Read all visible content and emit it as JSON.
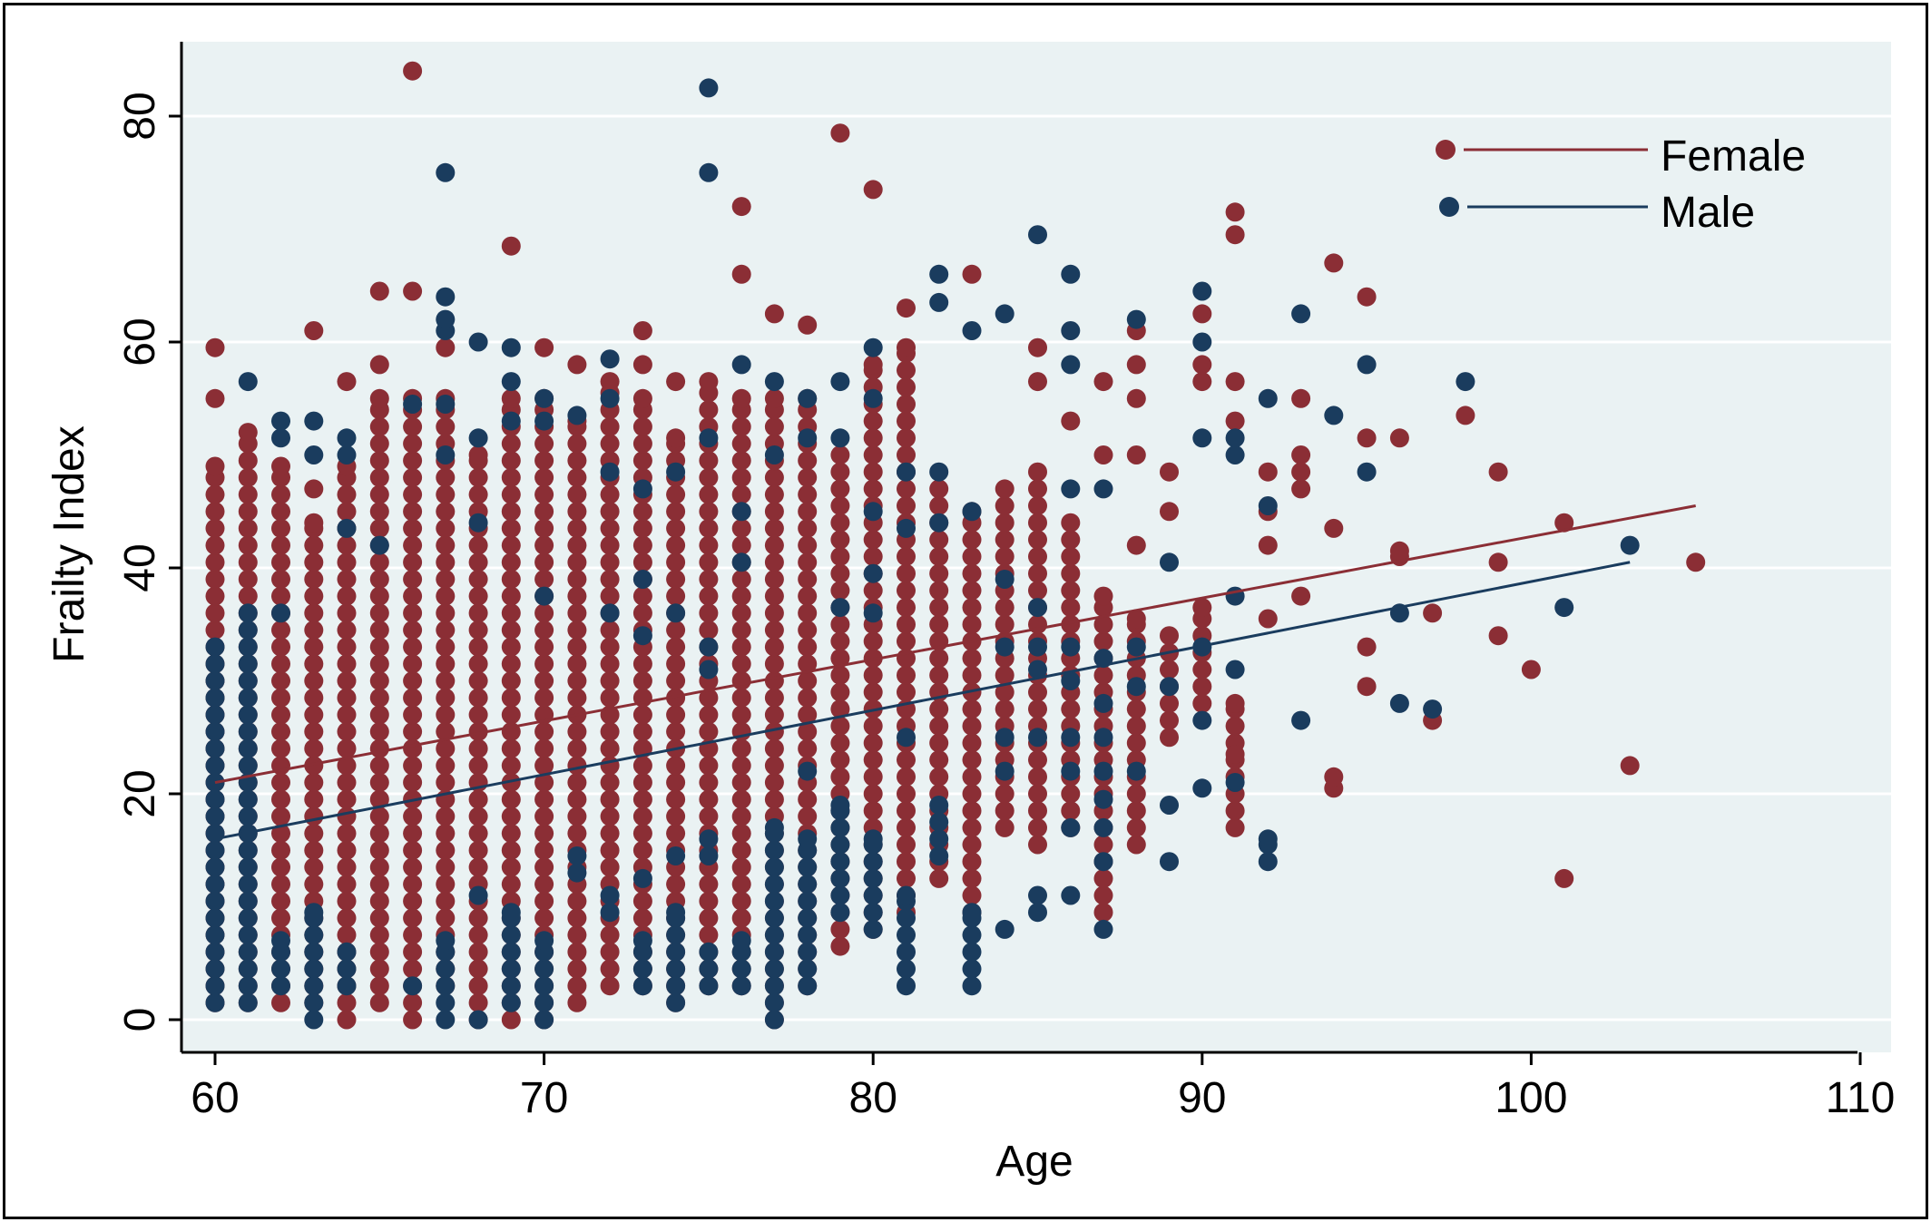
{
  "chart_data": {
    "type": "scatter",
    "xlabel": "Age",
    "ylabel": "Frailty Index",
    "xlim": [
      59,
      110.5
    ],
    "ylim": [
      -2.5,
      86
    ],
    "xticks": [
      60,
      70,
      80,
      90,
      100,
      110
    ],
    "yticks": [
      0,
      20,
      40,
      60,
      80
    ],
    "grid": "horizontal",
    "legend_position": "top-right",
    "series": [
      {
        "name": "Female",
        "color": "#8b2e35",
        "columns": [
          {
            "x": 60,
            "ymin": 1.5,
            "ymax": 49,
            "extra": [
              55,
              59.5
            ]
          },
          {
            "x": 61,
            "ymin": 1.5,
            "ymax": 52,
            "extra": []
          },
          {
            "x": 62,
            "ymin": 1.5,
            "ymax": 49,
            "extra": []
          },
          {
            "x": 63,
            "ymin": 1.5,
            "ymax": 44,
            "extra": [
              47,
              61
            ]
          },
          {
            "x": 64,
            "ymin": 0,
            "ymax": 49,
            "extra": [
              56.5
            ]
          },
          {
            "x": 65,
            "ymin": 1.5,
            "ymax": 55,
            "extra": [
              58,
              64.5
            ]
          },
          {
            "x": 66,
            "ymin": 0,
            "ymax": 55,
            "extra": [
              64.5,
              84
            ]
          },
          {
            "x": 67,
            "ymin": 3,
            "ymax": 55,
            "extra": [
              59.5
            ]
          },
          {
            "x": 68,
            "ymin": 0,
            "ymax": 50,
            "extra": []
          },
          {
            "x": 69,
            "ymin": 0,
            "ymax": 55,
            "extra": [
              68.5
            ]
          },
          {
            "x": 70,
            "ymin": 0,
            "ymax": 55,
            "extra": [
              59.5
            ]
          },
          {
            "x": 71,
            "ymin": 1.5,
            "ymax": 53,
            "extra": [
              58
            ]
          },
          {
            "x": 72,
            "ymin": 3,
            "ymax": 56.5,
            "extra": []
          },
          {
            "x": 73,
            "ymin": 3,
            "ymax": 55,
            "extra": [
              58,
              61
            ]
          },
          {
            "x": 74,
            "ymin": 1.5,
            "ymax": 51.5,
            "extra": [
              56.5
            ]
          },
          {
            "x": 75,
            "ymin": 3,
            "ymax": 56.5,
            "extra": []
          },
          {
            "x": 76,
            "ymin": 3,
            "ymax": 55,
            "extra": [
              66,
              72
            ]
          },
          {
            "x": 77,
            "ymin": 0,
            "ymax": 55,
            "extra": [
              62.5
            ]
          },
          {
            "x": 78,
            "ymin": 3,
            "ymax": 55,
            "extra": [
              61.5
            ]
          },
          {
            "x": 79,
            "ymin": 6.5,
            "ymax": 50,
            "extra": [
              78.5
            ]
          },
          {
            "x": 80,
            "ymin": 8,
            "ymax": 58,
            "extra": [
              73.5
            ]
          },
          {
            "x": 81,
            "ymin": 9.5,
            "ymax": 59.5,
            "extra": [
              63
            ]
          },
          {
            "x": 82,
            "ymin": 12.5,
            "ymax": 47,
            "extra": []
          },
          {
            "x": 83,
            "ymin": 9.5,
            "ymax": 45,
            "extra": [
              66
            ]
          },
          {
            "x": 84,
            "ymin": 17,
            "ymax": 47,
            "extra": []
          },
          {
            "x": 85,
            "ymin": 15.5,
            "ymax": 48.5,
            "extra": [
              56.5,
              59.5
            ]
          },
          {
            "x": 86,
            "ymin": 17,
            "ymax": 44,
            "extra": [
              53
            ]
          },
          {
            "x": 87,
            "ymin": 9.5,
            "ymax": 37.5,
            "extra": [
              50,
              56.5
            ]
          },
          {
            "x": 88,
            "ymin": 15.5,
            "ymax": 35.5,
            "extra": [
              42,
              50,
              55,
              58,
              61
            ]
          },
          {
            "x": 89,
            "ymin": 25,
            "ymax": 34,
            "extra": [
              45,
              48.5
            ]
          },
          {
            "x": 90,
            "ymin": 28,
            "ymax": 36.5,
            "extra": [
              56.5,
              58,
              62.5
            ]
          },
          {
            "x": 91,
            "ymin": 17,
            "ymax": 28,
            "extra": [
              23.5,
              53,
              56.5,
              69.5,
              71.5
            ]
          },
          {
            "x": 92,
            "ymin": 35.5,
            "ymax": 35.5,
            "extra": [
              42,
              45,
              48.5
            ]
          },
          {
            "x": 93,
            "ymin": 37.5,
            "ymax": 37.5,
            "extra": [
              47,
              48.5,
              50,
              55
            ]
          },
          {
            "x": 94,
            "ymin": 20.5,
            "ymax": 21.5,
            "extra": [
              43.5,
              67
            ]
          },
          {
            "x": 95,
            "ymin": 29.5,
            "ymax": 29.5,
            "extra": [
              33,
              51.5,
              64
            ]
          },
          {
            "x": 96,
            "ymin": 41,
            "ymax": 41.5,
            "extra": [
              51.5
            ]
          },
          {
            "x": 97,
            "ymin": 26.5,
            "ymax": 26.5,
            "extra": [
              36
            ]
          },
          {
            "x": 98,
            "ymin": 53.5,
            "ymax": 53.5,
            "extra": []
          },
          {
            "x": 99,
            "ymin": 34,
            "ymax": 34,
            "extra": [
              40.5,
              48.5
            ]
          },
          {
            "x": 100,
            "ymin": 31,
            "ymax": 31,
            "extra": []
          },
          {
            "x": 101,
            "ymin": 12.5,
            "ymax": 12.5,
            "extra": [
              44
            ]
          },
          {
            "x": 103,
            "ymin": 22.5,
            "ymax": 22.5,
            "extra": []
          },
          {
            "x": 105,
            "ymin": 40.5,
            "ymax": 40.5,
            "extra": []
          }
        ],
        "fit": [
          [
            60,
            21.0
          ],
          [
            105,
            45.5
          ]
        ]
      },
      {
        "name": "Male",
        "color": "#1a3c5e",
        "columns": [
          {
            "x": 60,
            "ymin": 1.5,
            "ymax": 33,
            "extra": []
          },
          {
            "x": 61,
            "ymin": 1.5,
            "ymax": 36,
            "extra": [
              56.5
            ]
          },
          {
            "x": 62,
            "ymin": 3,
            "ymax": 7,
            "extra": [
              36,
              51.5,
              53
            ]
          },
          {
            "x": 63,
            "ymin": 0,
            "ymax": 9.5,
            "extra": [
              50,
              53
            ]
          },
          {
            "x": 64,
            "ymin": 3,
            "ymax": 6,
            "extra": [
              43.5,
              50,
              51.5
            ]
          },
          {
            "x": 65,
            "ymin": 42,
            "ymax": 42,
            "extra": []
          },
          {
            "x": 66,
            "ymin": 3,
            "ymax": 3,
            "extra": [
              54.5
            ]
          },
          {
            "x": 67,
            "ymin": 0,
            "ymax": 7,
            "extra": [
              50,
              54.5,
              61,
              62,
              64,
              75
            ]
          },
          {
            "x": 68,
            "ymin": 0,
            "ymax": 0,
            "extra": [
              11,
              44,
              51.5,
              60
            ]
          },
          {
            "x": 69,
            "ymin": 1.5,
            "ymax": 9.5,
            "extra": [
              53,
              56.5,
              59.5
            ]
          },
          {
            "x": 70,
            "ymin": 0,
            "ymax": 7,
            "extra": [
              37.5,
              53,
              55
            ]
          },
          {
            "x": 71,
            "ymin": 13,
            "ymax": 14.5,
            "extra": [
              53.5
            ]
          },
          {
            "x": 72,
            "ymin": 9.5,
            "ymax": 11,
            "extra": [
              36,
              48.5,
              55,
              58.5
            ]
          },
          {
            "x": 73,
            "ymin": 3,
            "ymax": 7,
            "extra": [
              12.5,
              34,
              39,
              47
            ]
          },
          {
            "x": 74,
            "ymin": 1.5,
            "ymax": 9.5,
            "extra": [
              14.5,
              36,
              48.5
            ]
          },
          {
            "x": 75,
            "ymin": 3,
            "ymax": 6,
            "extra": [
              14.5,
              16,
              31,
              33,
              51.5,
              75,
              82.5
            ]
          },
          {
            "x": 76,
            "ymin": 3,
            "ymax": 7,
            "extra": [
              40.5,
              45,
              58
            ]
          },
          {
            "x": 77,
            "ymin": 0,
            "ymax": 17,
            "extra": [
              50,
              56.5
            ]
          },
          {
            "x": 78,
            "ymin": 3,
            "ymax": 16,
            "extra": [
              22,
              51.5,
              55
            ]
          },
          {
            "x": 79,
            "ymin": 9.5,
            "ymax": 19,
            "extra": [
              36.5,
              51.5,
              56.5
            ]
          },
          {
            "x": 80,
            "ymin": 8,
            "ymax": 16,
            "extra": [
              36,
              39.5,
              45,
              55,
              59.5
            ]
          },
          {
            "x": 81,
            "ymin": 3,
            "ymax": 11,
            "extra": [
              25,
              43.5,
              48.5
            ]
          },
          {
            "x": 82,
            "ymin": 14.5,
            "ymax": 19,
            "extra": [
              44,
              48.5,
              63.5,
              66
            ]
          },
          {
            "x": 83,
            "ymin": 3,
            "ymax": 9.5,
            "extra": [
              45,
              61
            ]
          },
          {
            "x": 84,
            "ymin": 8,
            "ymax": 8,
            "extra": [
              22,
              25,
              33,
              39,
              62.5
            ]
          },
          {
            "x": 85,
            "ymin": 9.5,
            "ymax": 11,
            "extra": [
              25,
              31,
              33,
              36.5,
              69.5
            ]
          },
          {
            "x": 86,
            "ymin": 11,
            "ymax": 11,
            "extra": [
              17,
              22,
              25,
              30,
              33,
              47,
              58,
              61,
              66
            ]
          },
          {
            "x": 87,
            "ymin": 8,
            "ymax": 8,
            "extra": [
              14,
              17,
              19.5,
              22,
              25,
              28,
              32,
              47
            ]
          },
          {
            "x": 88,
            "ymin": 22,
            "ymax": 22,
            "extra": [
              29.5,
              33,
              62
            ]
          },
          {
            "x": 89,
            "ymin": 14,
            "ymax": 14,
            "extra": [
              19,
              29.5,
              40.5
            ]
          },
          {
            "x": 90,
            "ymin": 20.5,
            "ymax": 20.5,
            "extra": [
              26.5,
              33,
              51.5,
              60,
              64.5
            ]
          },
          {
            "x": 91,
            "ymin": 21,
            "ymax": 21,
            "extra": [
              31,
              37.5,
              50,
              51.5
            ]
          },
          {
            "x": 92,
            "ymin": 14,
            "ymax": 16,
            "extra": [
              45.5,
              55
            ]
          },
          {
            "x": 93,
            "ymin": 26.5,
            "ymax": 26.5,
            "extra": [
              62.5
            ]
          },
          {
            "x": 94,
            "ymin": 53.5,
            "ymax": 53.5,
            "extra": []
          },
          {
            "x": 95,
            "ymin": 48.5,
            "ymax": 48.5,
            "extra": [
              58
            ]
          },
          {
            "x": 96,
            "ymin": 28,
            "ymax": 28,
            "extra": [
              36
            ]
          },
          {
            "x": 97,
            "ymin": 27.5,
            "ymax": 27.5,
            "extra": []
          },
          {
            "x": 98,
            "ymin": 56.5,
            "ymax": 56.5,
            "extra": []
          },
          {
            "x": 101,
            "ymin": 36.5,
            "ymax": 36.5,
            "extra": []
          },
          {
            "x": 103,
            "ymin": 42,
            "ymax": 42,
            "extra": []
          }
        ],
        "fit": [
          [
            60,
            16.0
          ],
          [
            103,
            40.5
          ]
        ]
      }
    ]
  }
}
